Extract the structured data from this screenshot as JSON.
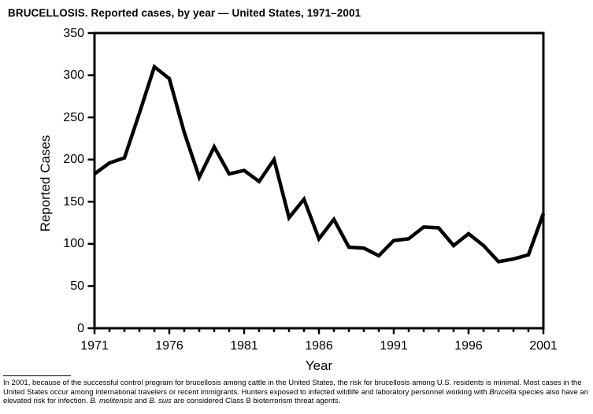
{
  "window": {
    "background": "#ffffff",
    "foreground": "#000000"
  },
  "chart_data": {
    "type": "line",
    "title": "BRUCELLOSIS. Reported cases, by year — United States, 1971–2001",
    "ylabel": "Reported Cases",
    "xlabel": "Year",
    "x_range": [
      1971,
      2001
    ],
    "ylim": [
      0,
      350
    ],
    "yticks": [
      0,
      50,
      100,
      150,
      200,
      250,
      300,
      350
    ],
    "xticks_labeled": [
      1971,
      1976,
      1981,
      1986,
      1991,
      1996,
      2001
    ],
    "xtick_every_year": true,
    "grid": false,
    "legend": "none",
    "frame": "closed-box",
    "line_color": "#000000",
    "line_width": 4.5,
    "x": [
      1971,
      1972,
      1973,
      1974,
      1975,
      1976,
      1977,
      1978,
      1979,
      1980,
      1981,
      1982,
      1983,
      1984,
      1985,
      1986,
      1987,
      1988,
      1989,
      1990,
      1991,
      1992,
      1993,
      1994,
      1995,
      1996,
      1997,
      1998,
      1999,
      2000,
      2001
    ],
    "values": [
      183,
      196,
      202,
      255,
      310,
      296,
      232,
      179,
      215,
      183,
      187,
      174,
      200,
      131,
      153,
      106,
      129,
      96,
      95,
      86,
      104,
      106,
      120,
      119,
      98,
      112,
      98,
      79,
      82,
      87,
      136
    ]
  },
  "footnote": {
    "segments": [
      {
        "text": "In 2001, because of the successful control program for brucellosis among cattle in the United States, the risk for brucellosis among U.S. residents is minimal. Most cases in the United States occur among international travelers or recent immigrants. Hunters exposed to infected wildlife and laboratory personnel working with ",
        "italic": false
      },
      {
        "text": "Brucella",
        "italic": true
      },
      {
        "text": " species also have an elevated risk for infection. ",
        "italic": false
      },
      {
        "text": "B. melitensis",
        "italic": true
      },
      {
        "text": " and ",
        "italic": false
      },
      {
        "text": "B. suis",
        "italic": true
      },
      {
        "text": " are considered Class B bioterrorism threat agents.",
        "italic": false
      }
    ]
  }
}
